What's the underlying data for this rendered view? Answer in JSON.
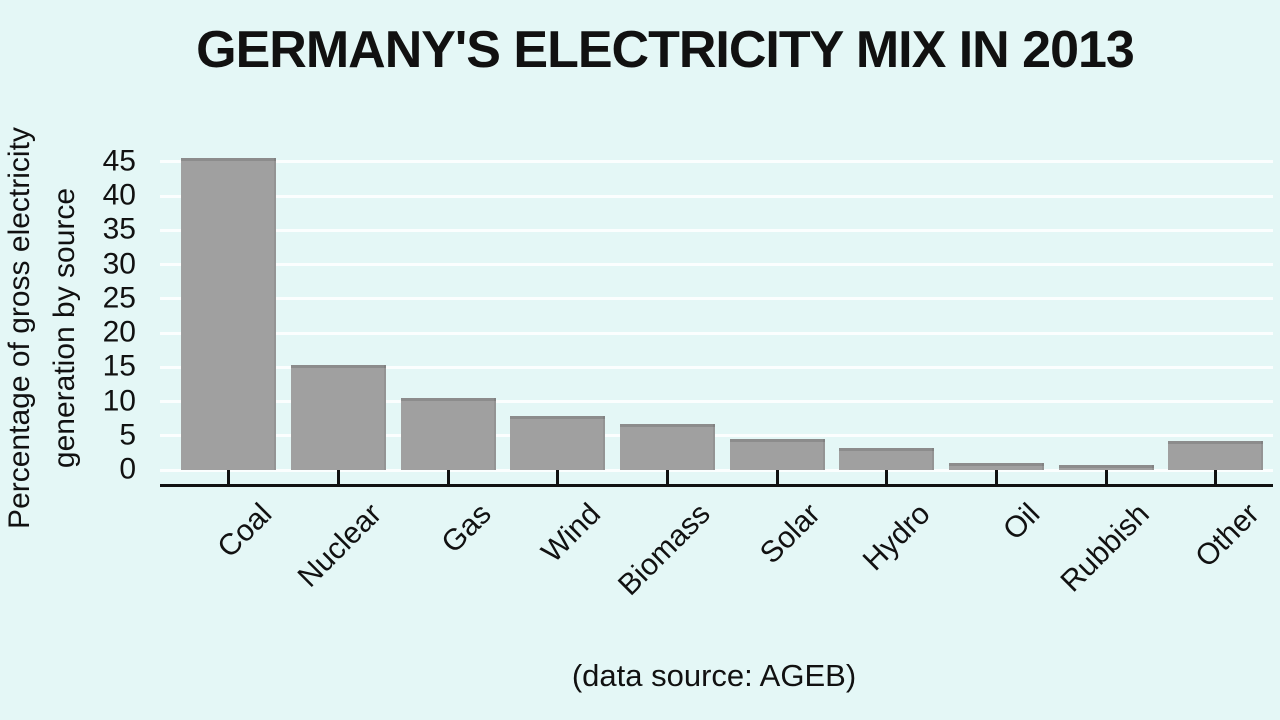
{
  "chart_data": {
    "type": "bar",
    "title": "GERMANY'S ELECTRICITY MIX IN 2013",
    "ylabel": "Percentage of gross electricity generation by source",
    "ylabel_lines": [
      "Percentage of gross electricity",
      "generation by source"
    ],
    "caption": "(data source: AGEB)",
    "categories": [
      "Coal",
      "Nuclear",
      "Gas",
      "Wind",
      "Biomass",
      "Solar",
      "Hydro",
      "Oil",
      "Rubbish",
      "Other"
    ],
    "values": [
      45.5,
      15.4,
      10.5,
      7.9,
      6.7,
      4.5,
      3.2,
      1.0,
      0.7,
      4.3
    ],
    "value_unit": "percent",
    "yticks": [
      0,
      5,
      10,
      15,
      20,
      25,
      30,
      35,
      40,
      45
    ],
    "ylim": [
      0,
      47
    ],
    "grid": "horizontal-every-5",
    "legend": "none",
    "colors": {
      "background": "#e4f7f6",
      "bar": "#a0a0a0",
      "bar_edge_shade": "rgba(0,0,0,0.12)",
      "gridline": "rgba(255,255,255,0.85)",
      "axis": "#111111",
      "text": "#111111"
    }
  }
}
